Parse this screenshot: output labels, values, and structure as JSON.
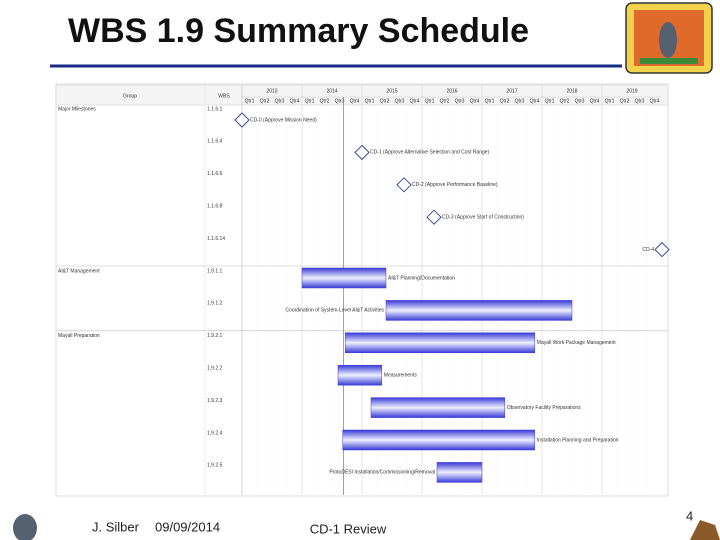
{
  "slide": {
    "title": "WBS 1.9 Summary Schedule",
    "author": "J. Silber",
    "date": "09/09/2014",
    "footer": "CD-1 Review",
    "page": "4"
  },
  "chart_data": {
    "type": "gantt",
    "group_header": "Group",
    "wbs_header": "WBS",
    "xlim": [
      2013,
      2020
    ],
    "xticks": [
      2013,
      2014,
      2015,
      2016,
      2017,
      2018,
      2019
    ],
    "quarters": [
      "Qtr1",
      "Qtr2",
      "Qtr3",
      "Qtr4"
    ],
    "today_line": 2014.69,
    "bar_color": "#3a3ad6",
    "tasks": [
      {
        "group": "Major Milestones",
        "wbs": "1.1.6.1",
        "label": "CD-0 (Approve Mission Need)",
        "kind": "milestone",
        "start": 2013.0,
        "label_side": "right"
      },
      {
        "wbs": "1.1.6.4",
        "label": "CD-1 (Approve Alternative Selection and Cost Range)",
        "kind": "milestone",
        "start": 2015.0,
        "label_side": "right"
      },
      {
        "wbs": "1.1.6.6",
        "label": "CD-2 (Approve Performance Baseline)",
        "kind": "milestone",
        "start": 2015.7,
        "label_side": "right"
      },
      {
        "wbs": "1.1.6.8",
        "label": "CD-3 (Approve Start of Construction)",
        "kind": "milestone",
        "start": 2016.2,
        "label_side": "right"
      },
      {
        "wbs": "1.1.6.14",
        "label": "CD-4",
        "kind": "milestone",
        "start": 2020.0,
        "label_side": "left"
      },
      {
        "group": "AI&T Management",
        "wbs": "1.9.1.1",
        "label": "AI&T Planning/Documentation",
        "kind": "bar",
        "start": 2014.0,
        "end": 2015.4,
        "label_side": "right"
      },
      {
        "wbs": "1.9.1.2",
        "label": "Coordination of System-Level AI&T Activities",
        "kind": "bar",
        "start": 2015.4,
        "end": 2018.5,
        "label_side": "left"
      },
      {
        "group": "Mayall Preparation",
        "wbs": "1.9.2.1",
        "label": "Mayall Work Package Management",
        "kind": "bar",
        "start": 2014.72,
        "end": 2017.88,
        "label_side": "right"
      },
      {
        "wbs": "1.9.2.2",
        "label": "Measurements",
        "kind": "bar",
        "start": 2014.6,
        "end": 2015.33,
        "label_side": "right"
      },
      {
        "wbs": "1.9.2.3",
        "label": "Observatory Facility Preparations",
        "kind": "bar",
        "start": 2015.15,
        "end": 2017.38,
        "label_side": "right"
      },
      {
        "wbs": "1.9.2.4",
        "label": "Installation Planning and Preparation",
        "kind": "bar",
        "start": 2014.68,
        "end": 2017.88,
        "label_side": "right"
      },
      {
        "wbs": "1.9.2.5",
        "label": "ProtoDESI Installation/Commissioning/Removal",
        "kind": "bar",
        "start": 2016.25,
        "end": 2017.0,
        "label_side": "left"
      }
    ]
  }
}
